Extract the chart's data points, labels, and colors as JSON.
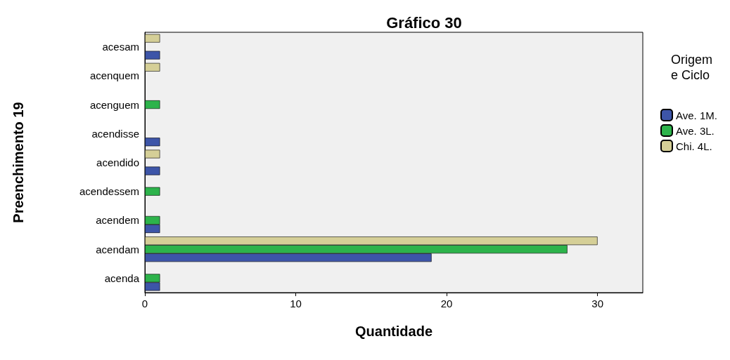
{
  "chart_data": {
    "type": "bar",
    "orientation": "horizontal",
    "title": "Gráfico 30",
    "xlabel": "Quantidade",
    "ylabel": "Preenchimento 19",
    "legend_title": "Origem\ne Ciclo",
    "legend": "right",
    "grid": false,
    "categories": [
      "acesam",
      "acenquem",
      "acenguem",
      "acendisse",
      "acendido",
      "acendessem",
      "acendem",
      "acendam",
      "acenda"
    ],
    "series": [
      {
        "name": "Ave. 1M.",
        "color": "#3d55a8",
        "values": [
          1,
          null,
          null,
          1,
          1,
          null,
          1,
          19,
          1
        ]
      },
      {
        "name": "Ave. 3L.",
        "color": "#2db34b",
        "values": [
          null,
          null,
          1,
          null,
          null,
          1,
          1,
          28,
          1
        ]
      },
      {
        "name": "Chi. 4L.",
        "color": "#d5cf97",
        "values": [
          1,
          1,
          null,
          null,
          1,
          null,
          null,
          30,
          null
        ]
      }
    ],
    "xlim": [
      0,
      33
    ],
    "xticks": [
      0,
      10,
      20,
      30
    ]
  }
}
